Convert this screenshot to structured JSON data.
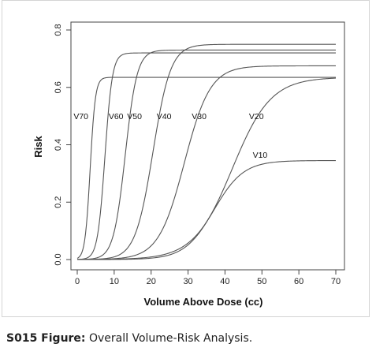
{
  "caption": {
    "label": "S015 Figure:",
    "text": " Overall Volume-Risk Analysis."
  },
  "chart_data": {
    "type": "line",
    "xlabel": "Volume Above Dose (cc)",
    "ylabel": "Risk",
    "xlim": [
      0,
      70
    ],
    "ylim": [
      0,
      0.8
    ],
    "x_ticks": [
      "0",
      "10",
      "20",
      "30",
      "40",
      "50",
      "60",
      "70"
    ],
    "y_ticks": [
      "0.0",
      "0.2",
      "0.4",
      "0.6",
      "0.8"
    ],
    "line_color": "#555555",
    "series": [
      {
        "name": "V70",
        "max_risk": 0.635,
        "midpoint_cc": 3.5,
        "width_cc": 0.7,
        "points": [
          [
            0,
            0.01
          ],
          [
            2,
            0.08
          ],
          [
            3,
            0.25
          ],
          [
            3.5,
            0.32
          ],
          [
            4,
            0.45
          ],
          [
            5,
            0.6
          ],
          [
            6,
            0.63
          ],
          [
            8,
            0.635
          ],
          [
            70,
            0.635
          ]
        ]
      },
      {
        "name": "V60",
        "max_risk": 0.72,
        "midpoint_cc": 7.5,
        "width_cc": 1.0,
        "points": [
          [
            0,
            0.0
          ],
          [
            5,
            0.08
          ],
          [
            7,
            0.3
          ],
          [
            7.5,
            0.36
          ],
          [
            9,
            0.62
          ],
          [
            10,
            0.69
          ],
          [
            12,
            0.72
          ],
          [
            70,
            0.72
          ]
        ]
      },
      {
        "name": "V50",
        "max_risk": 0.73,
        "midpoint_cc": 13,
        "width_cc": 1.6,
        "points": [
          [
            0,
            0.0
          ],
          [
            8,
            0.06
          ],
          [
            11,
            0.22
          ],
          [
            13,
            0.365
          ],
          [
            15,
            0.55
          ],
          [
            18,
            0.7
          ],
          [
            22,
            0.73
          ],
          [
            70,
            0.73
          ]
        ]
      },
      {
        "name": "V40",
        "max_risk": 0.75,
        "midpoint_cc": 20.5,
        "width_cc": 2.4,
        "points": [
          [
            0,
            0.0
          ],
          [
            10,
            0.04
          ],
          [
            16,
            0.18
          ],
          [
            20.5,
            0.375
          ],
          [
            25,
            0.6
          ],
          [
            30,
            0.72
          ],
          [
            36,
            0.75
          ],
          [
            70,
            0.75
          ]
        ]
      },
      {
        "name": "V30",
        "max_risk": 0.675,
        "midpoint_cc": 29,
        "width_cc": 3.5,
        "points": [
          [
            0,
            0.0
          ],
          [
            15,
            0.04
          ],
          [
            22,
            0.14
          ],
          [
            29,
            0.34
          ],
          [
            35,
            0.55
          ],
          [
            40,
            0.64
          ],
          [
            50,
            0.675
          ],
          [
            70,
            0.675
          ]
        ]
      },
      {
        "name": "V20",
        "max_risk": 0.635,
        "midpoint_cc": 42,
        "width_cc": 5.2,
        "points": [
          [
            0,
            0.0
          ],
          [
            20,
            0.03
          ],
          [
            30,
            0.12
          ],
          [
            42,
            0.32
          ],
          [
            50,
            0.48
          ],
          [
            60,
            0.59
          ],
          [
            70,
            0.62
          ]
        ]
      },
      {
        "name": "V10",
        "max_risk": 0.345,
        "midpoint_cc": 37,
        "width_cc": 4.0,
        "points": [
          [
            0,
            0.0
          ],
          [
            20,
            0.01
          ],
          [
            30,
            0.07
          ],
          [
            37,
            0.17
          ],
          [
            45,
            0.3
          ],
          [
            52,
            0.34
          ],
          [
            70,
            0.345
          ]
        ]
      }
    ],
    "labels": [
      {
        "text": "V70",
        "x": -1,
        "y": 0.49
      },
      {
        "text": "V60",
        "x": 8.5,
        "y": 0.49
      },
      {
        "text": "V50",
        "x": 13.5,
        "y": 0.49
      },
      {
        "text": "V40",
        "x": 21.5,
        "y": 0.49
      },
      {
        "text": "V30",
        "x": 31,
        "y": 0.49
      },
      {
        "text": "V20",
        "x": 46.5,
        "y": 0.49
      },
      {
        "text": "V10",
        "x": 47.5,
        "y": 0.355
      }
    ],
    "grid": false,
    "legend": "none"
  }
}
